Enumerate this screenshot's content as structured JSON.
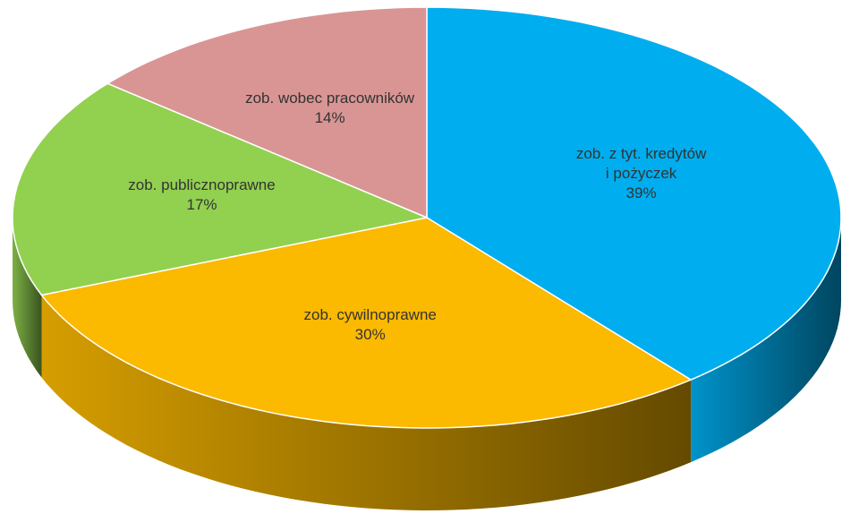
{
  "chart_data": {
    "type": "pie",
    "categories": [
      "zob. z tyt. kredytów\ni pożyczek",
      "zob. cywilnoprawne",
      "zob. publicznoprawne",
      "zob. wobec pracowników"
    ],
    "values": [
      39,
      30,
      17,
      14
    ],
    "value_labels": [
      "39%",
      "30%",
      "17%",
      "14%"
    ],
    "colors": [
      "#00adee",
      "#fbb900",
      "#92d050",
      "#d99594"
    ]
  }
}
